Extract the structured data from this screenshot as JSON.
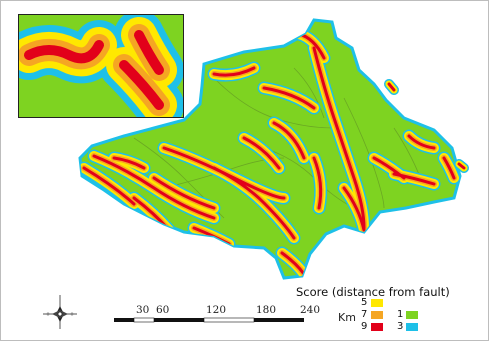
{
  "legend": {
    "title": "Score (distance from fault)",
    "classes": [
      {
        "score": "5",
        "color": "#ffe800"
      },
      {
        "score": "7",
        "color": "#f5a623"
      },
      {
        "score": "9",
        "color": "#e2001a"
      },
      {
        "score": "1",
        "color": "#7ed321"
      },
      {
        "score": "3",
        "color": "#1ec0e8"
      }
    ]
  },
  "scale": {
    "unit": "Km",
    "ticks": [
      "30",
      "60",
      "120",
      "180",
      "240"
    ]
  },
  "colors": {
    "land": "#7ed321",
    "buffer_outer": "#1ec0e8",
    "buffer_mid": "#ffe800",
    "buffer_inner": "#f5a623",
    "fault": "#e2001a",
    "internal_boundaries": "#6aa823"
  },
  "icons": {
    "north_arrow": "compass-rose-icon"
  }
}
